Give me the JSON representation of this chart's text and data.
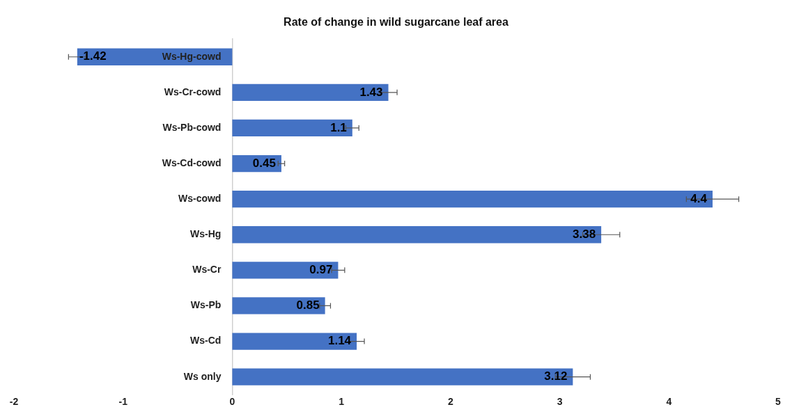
{
  "chart_data": {
    "type": "bar",
    "orientation": "horizontal",
    "title": "Rate of change in wild sugarcane leaf area",
    "categories": [
      "Ws-Hg-cowd",
      "Ws-Cr-cowd",
      "Ws-Pb-cowd",
      "Ws-Cd-cowd",
      "Ws-cowd",
      "Ws-Hg",
      "Ws-Cr",
      "Ws-Pb",
      "Ws-Cd",
      "Ws only"
    ],
    "values": [
      -1.42,
      1.43,
      1.1,
      0.45,
      4.4,
      3.38,
      0.97,
      0.85,
      1.14,
      3.12
    ],
    "errors": [
      0.08,
      0.08,
      0.06,
      0.03,
      0.24,
      0.17,
      0.06,
      0.05,
      0.07,
      0.16
    ],
    "color": "#4472c4",
    "xlim": [
      -2,
      5
    ],
    "xticks": [
      -2,
      -1,
      0,
      1,
      2,
      3,
      4,
      5
    ],
    "grid": false,
    "data_labels": true
  }
}
